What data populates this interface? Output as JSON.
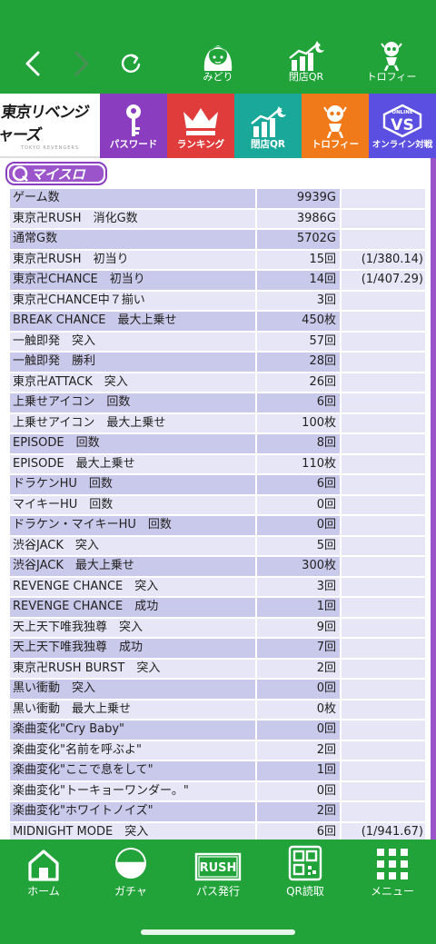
{
  "top_nav": {
    "items": [
      {
        "label": "みどり",
        "icon": "character-icon"
      },
      {
        "label": "閉店QR",
        "icon": "chart-moon-icon"
      },
      {
        "label": "トロフィー",
        "icon": "trophy-icon"
      }
    ]
  },
  "menu": {
    "logo_text": "東京リベンジャーズ",
    "logo_sub": "TOKYO REVENGERS",
    "tiles": [
      {
        "label": "パスワード",
        "color": "#8a3dbf",
        "icon": "key-icon"
      },
      {
        "label": "ランキング",
        "color": "#e03c3c",
        "icon": "crown-icon"
      },
      {
        "label": "閉店QR",
        "color": "#1aa89a",
        "icon": "chart-moon-icon"
      },
      {
        "label": "トロフィー",
        "color": "#f07a1a",
        "icon": "trophy-icon"
      },
      {
        "label": "オンライン対戦",
        "color": "#5a4fe0",
        "icon": "vs-icon",
        "badge": "ONLINE"
      }
    ]
  },
  "section": {
    "title": "マイスロ"
  },
  "stats": [
    {
      "name": "ゲーム数",
      "value": "9939G",
      "rate": ""
    },
    {
      "name": "東京卍RUSH　消化G数",
      "value": "3986G",
      "rate": ""
    },
    {
      "name": "通常G数",
      "value": "5702G",
      "rate": ""
    },
    {
      "name": "東京卍RUSH　初当り",
      "value": "15回",
      "rate": "(1/380.14)"
    },
    {
      "name": "東京卍CHANCE　初当り",
      "value": "14回",
      "rate": "(1/407.29)"
    },
    {
      "name": "東京卍CHANCE中７揃い",
      "value": "3回",
      "rate": ""
    },
    {
      "name": "BREAK CHANCE　最大上乗せ",
      "value": "450枚",
      "rate": ""
    },
    {
      "name": "一触即発　突入",
      "value": "57回",
      "rate": ""
    },
    {
      "name": "一触即発　勝利",
      "value": "28回",
      "rate": ""
    },
    {
      "name": "東京卍ATTACK　突入",
      "value": "26回",
      "rate": ""
    },
    {
      "name": "上乗せアイコン　回数",
      "value": "6回",
      "rate": ""
    },
    {
      "name": "上乗せアイコン　最大上乗せ",
      "value": "100枚",
      "rate": ""
    },
    {
      "name": "EPISODE　回数",
      "value": "8回",
      "rate": ""
    },
    {
      "name": "EPISODE　最大上乗せ",
      "value": "110枚",
      "rate": ""
    },
    {
      "name": "ドラケンHU　回数",
      "value": "6回",
      "rate": ""
    },
    {
      "name": "マイキーHU　回数",
      "value": "0回",
      "rate": ""
    },
    {
      "name": "ドラケン・マイキーHU　回数",
      "value": "0回",
      "rate": ""
    },
    {
      "name": "渋谷JACK　突入",
      "value": "5回",
      "rate": ""
    },
    {
      "name": "渋谷JACK　最大上乗せ",
      "value": "300枚",
      "rate": ""
    },
    {
      "name": "REVENGE CHANCE　突入",
      "value": "3回",
      "rate": ""
    },
    {
      "name": "REVENGE CHANCE　成功",
      "value": "1回",
      "rate": ""
    },
    {
      "name": "天上天下唯我独尊　突入",
      "value": "9回",
      "rate": ""
    },
    {
      "name": "天上天下唯我独尊　成功",
      "value": "7回",
      "rate": ""
    },
    {
      "name": "東京卍RUSH BURST　突入",
      "value": "2回",
      "rate": ""
    },
    {
      "name": "黒い衝動　突入",
      "value": "0回",
      "rate": ""
    },
    {
      "name": "黒い衝動　最大上乗せ",
      "value": "0枚",
      "rate": ""
    },
    {
      "name": "楽曲変化\"Cry Baby\"",
      "value": "0回",
      "rate": ""
    },
    {
      "name": "楽曲変化\"名前を呼ぶよ\"",
      "value": "2回",
      "rate": ""
    },
    {
      "name": "楽曲変化\"ここで息をして\"",
      "value": "1回",
      "rate": ""
    },
    {
      "name": "楽曲変化\"トーキョーワンダー。\"",
      "value": "0回",
      "rate": ""
    },
    {
      "name": "楽曲変化\"ホワイトノイズ\"",
      "value": "2回",
      "rate": ""
    },
    {
      "name": "MIDNIGHT MODE　突入",
      "value": "6回",
      "rate": "(1/941.67)"
    }
  ],
  "bottom_tabs": [
    {
      "label": "ホーム",
      "icon": "home-icon"
    },
    {
      "label": "ガチャ",
      "icon": "gacha-icon"
    },
    {
      "label": "パス発行",
      "icon": "rush-pass-icon",
      "badge": "RUSH"
    },
    {
      "label": "QR読取",
      "icon": "qr-icon"
    },
    {
      "label": "メニュー",
      "icon": "menu-grid-icon"
    }
  ],
  "colors": {
    "green": "#21a33a",
    "row_dark": "#c9c9eb",
    "row_light": "#e6e6f6",
    "accent_purple": "#9b54c9"
  }
}
